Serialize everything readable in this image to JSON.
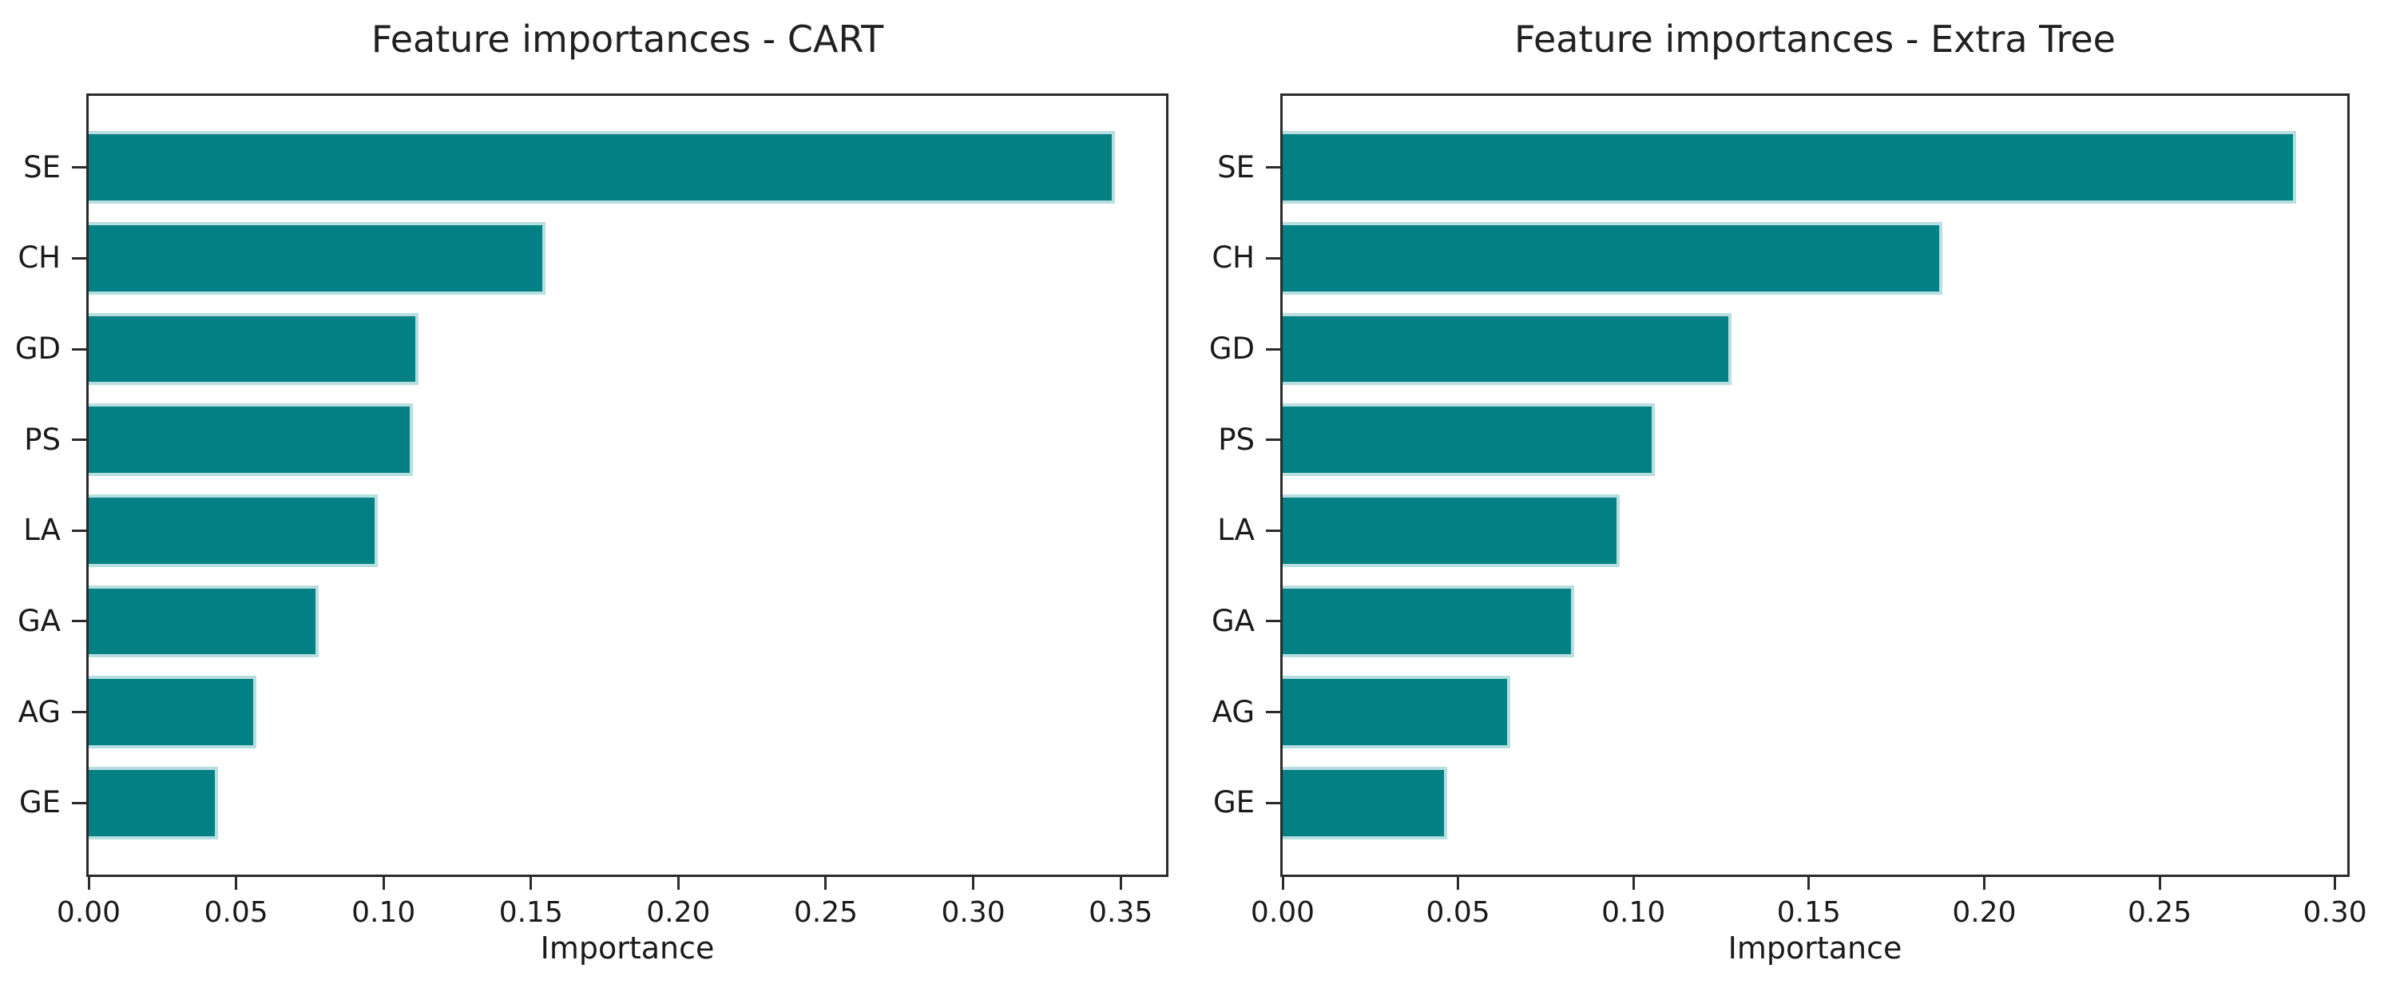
{
  "page": {
    "background_color": "#ffffff",
    "text_color": "#1a1a1a",
    "accent_color": "#028083"
  },
  "chart_data": [
    {
      "type": "bar",
      "orientation": "horizontal",
      "title": "Feature importances - CART",
      "xlabel": "Importance",
      "categories": [
        "SE",
        "CH",
        "GD",
        "PS",
        "LA",
        "GA",
        "AG",
        "GE"
      ],
      "values": [
        0.348,
        0.155,
        0.112,
        0.11,
        0.098,
        0.078,
        0.057,
        0.044
      ],
      "xticks": [
        0.0,
        0.05,
        0.1,
        0.15,
        0.2,
        0.25,
        0.3,
        0.35
      ],
      "xtick_labels": [
        "0.00",
        "0.05",
        "0.10",
        "0.15",
        "0.20",
        "0.25",
        "0.30",
        "0.35"
      ],
      "xlim": [
        0,
        0.3654
      ],
      "grid": false,
      "bar_color": "#028083",
      "bar_edge_color": "#b7dee0",
      "frame_color": "#2b2b2b"
    },
    {
      "type": "bar",
      "orientation": "horizontal",
      "title": "Feature importances - Extra Tree",
      "xlabel": "Importance",
      "categories": [
        "SE",
        "CH",
        "GD",
        "PS",
        "LA",
        "GA",
        "AG",
        "GE"
      ],
      "values": [
        0.289,
        0.188,
        0.128,
        0.106,
        0.096,
        0.083,
        0.065,
        0.047
      ],
      "xticks": [
        0.0,
        0.05,
        0.1,
        0.15,
        0.2,
        0.25,
        0.3
      ],
      "xtick_labels": [
        "0.00",
        "0.05",
        "0.10",
        "0.15",
        "0.20",
        "0.25",
        "0.30"
      ],
      "xlim": [
        0,
        0.3035
      ],
      "grid": false,
      "bar_color": "#028083",
      "bar_edge_color": "#b7dee0",
      "frame_color": "#2b2b2b"
    }
  ]
}
